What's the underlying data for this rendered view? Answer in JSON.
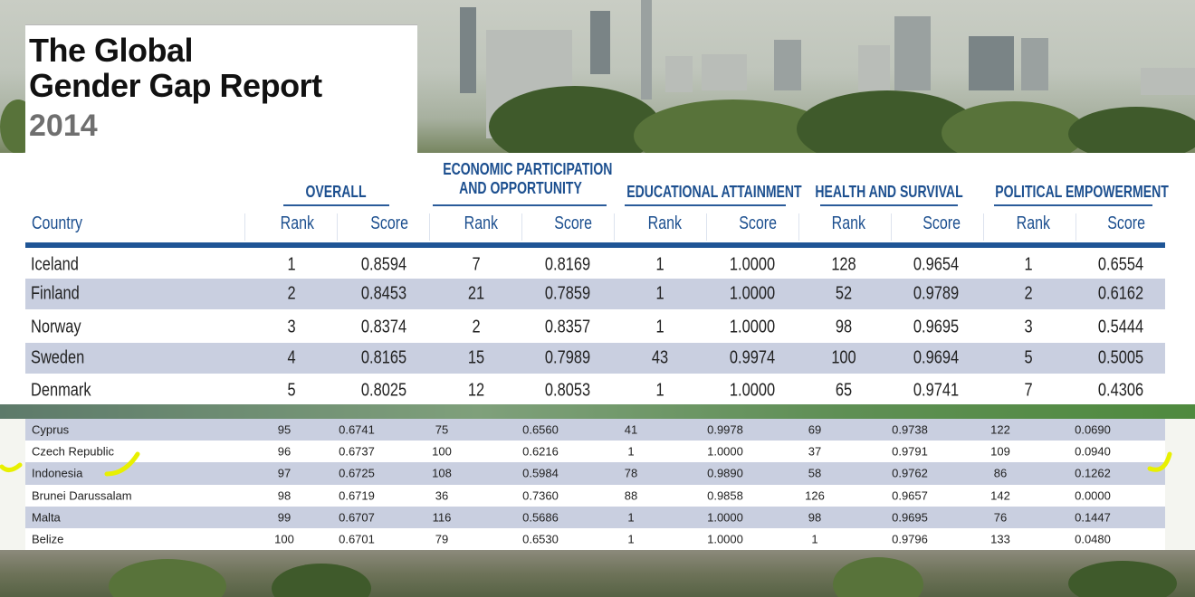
{
  "title": {
    "line1": "The Global",
    "line2": "Gender Gap Report",
    "year": "2014"
  },
  "columns": {
    "groups": [
      {
        "line1": "OVERALL",
        "line2": ""
      },
      {
        "line1": "ECONOMIC PARTICIPATION",
        "line2": "AND OPPORTUNITY"
      },
      {
        "line1": "EDUCATIONAL ATTAINMENT",
        "line2": ""
      },
      {
        "line1": "HEALTH AND SURVIVAL",
        "line2": ""
      },
      {
        "line1": "POLITICAL EMPOWERMENT",
        "line2": ""
      }
    ],
    "country": "Country",
    "rank": "Rank",
    "score": "Score"
  },
  "top_rows": [
    [
      "Iceland",
      "1",
      "0.8594",
      "7",
      "0.8169",
      "1",
      "1.0000",
      "128",
      "0.9654",
      "1",
      "0.6554"
    ],
    [
      "Finland",
      "2",
      "0.8453",
      "21",
      "0.7859",
      "1",
      "1.0000",
      "52",
      "0.9789",
      "2",
      "0.6162"
    ],
    [
      "Norway",
      "3",
      "0.8374",
      "2",
      "0.8357",
      "1",
      "1.0000",
      "98",
      "0.9695",
      "3",
      "0.5444"
    ],
    [
      "Sweden",
      "4",
      "0.8165",
      "15",
      "0.7989",
      "43",
      "0.9974",
      "100",
      "0.9694",
      "5",
      "0.5005"
    ],
    [
      "Denmark",
      "5",
      "0.8025",
      "12",
      "0.8053",
      "1",
      "1.0000",
      "65",
      "0.9741",
      "7",
      "0.4306"
    ]
  ],
  "bottom_rows": [
    [
      "Cyprus",
      "95",
      "0.6741",
      "75",
      "0.6560",
      "41",
      "0.9978",
      "69",
      "0.9738",
      "122",
      "0.0690"
    ],
    [
      "Czech Republic",
      "96",
      "0.6737",
      "100",
      "0.6216",
      "1",
      "1.0000",
      "37",
      "0.9791",
      "109",
      "0.0940"
    ],
    [
      "Indonesia",
      "97",
      "0.6725",
      "108",
      "0.5984",
      "78",
      "0.9890",
      "58",
      "0.9762",
      "86",
      "0.1262"
    ],
    [
      "Brunei Darussalam",
      "98",
      "0.6719",
      "36",
      "0.7360",
      "88",
      "0.9858",
      "126",
      "0.9657",
      "142",
      "0.0000"
    ],
    [
      "Malta",
      "99",
      "0.6707",
      "116",
      "0.5686",
      "1",
      "1.0000",
      "98",
      "0.9695",
      "76",
      "0.1447"
    ],
    [
      "Belize",
      "100",
      "0.6701",
      "79",
      "0.6530",
      "1",
      "1.0000",
      "1",
      "0.9796",
      "133",
      "0.0480"
    ]
  ],
  "colors": {
    "header_blue": "#1c4f8f",
    "row_shade": "#c9cfe0",
    "highlighter": "#e8f000"
  }
}
